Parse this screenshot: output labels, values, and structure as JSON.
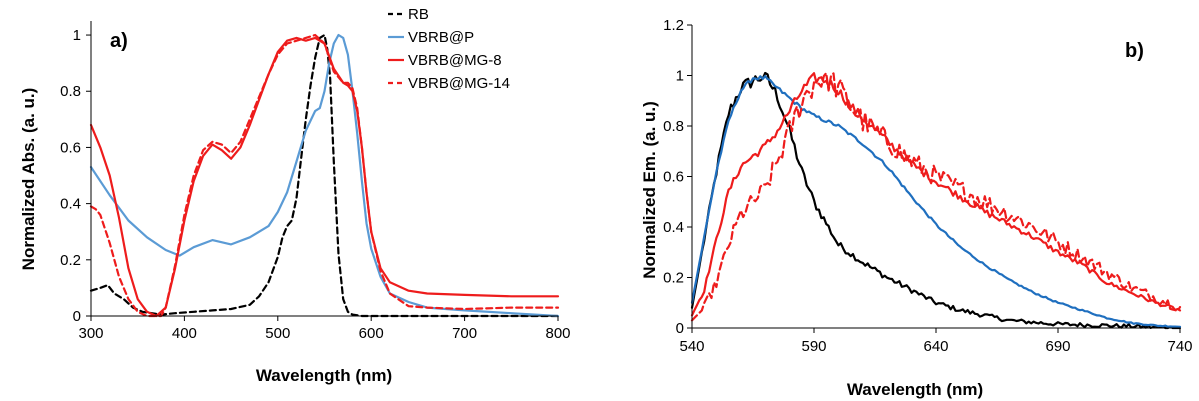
{
  "chart_data": [
    {
      "type": "line",
      "panel_label": "a)",
      "xlabel": "Wavelength (nm)",
      "ylabel": "Normalized Abs. (a. u.)",
      "xlim": [
        300,
        800
      ],
      "ylim": [
        0,
        1.05
      ],
      "xticks": [
        "300",
        "400",
        "500",
        "600",
        "700",
        "800"
      ],
      "yticks": [
        "0",
        "0.2",
        "0.4",
        "0.6",
        "0.8",
        "1"
      ],
      "grid": false,
      "legend_position": "top-right",
      "series": [
        {
          "name": "RB",
          "color": "#000000",
          "dash": true,
          "x": [
            300,
            310,
            318,
            325,
            335,
            345,
            355,
            365,
            375,
            390,
            410,
            430,
            450,
            470,
            480,
            490,
            500,
            505,
            510,
            515,
            520,
            525,
            530,
            535,
            540,
            545,
            550,
            553,
            556,
            560,
            565,
            570,
            575,
            580,
            590,
            600,
            650,
            700,
            800
          ],
          "y": [
            0.09,
            0.1,
            0.11,
            0.08,
            0.06,
            0.03,
            0.015,
            0.01,
            0.005,
            0.01,
            0.015,
            0.02,
            0.025,
            0.04,
            0.07,
            0.12,
            0.21,
            0.28,
            0.32,
            0.34,
            0.42,
            0.56,
            0.7,
            0.82,
            0.92,
            0.99,
            1.0,
            0.95,
            0.85,
            0.55,
            0.22,
            0.06,
            0.015,
            0.005,
            0.0,
            0.0,
            0.0,
            0.0,
            0.0
          ]
        },
        {
          "name": "VBRB@P",
          "color": "#5b9bd5",
          "dash": false,
          "x": [
            300,
            320,
            340,
            360,
            380,
            395,
            410,
            430,
            450,
            470,
            490,
            500,
            510,
            520,
            530,
            540,
            545,
            550,
            555,
            560,
            565,
            570,
            575,
            580,
            585,
            590,
            595,
            600,
            610,
            620,
            640,
            660,
            700,
            750,
            800
          ],
          "y": [
            0.53,
            0.43,
            0.34,
            0.28,
            0.235,
            0.215,
            0.245,
            0.27,
            0.255,
            0.28,
            0.32,
            0.37,
            0.44,
            0.55,
            0.66,
            0.73,
            0.74,
            0.8,
            0.9,
            0.97,
            1.0,
            0.99,
            0.93,
            0.8,
            0.65,
            0.48,
            0.33,
            0.24,
            0.14,
            0.08,
            0.05,
            0.03,
            0.02,
            0.01,
            0.0
          ]
        },
        {
          "name": "VBRB@MG-8",
          "color": "#ee1c1c",
          "dash": false,
          "x": [
            300,
            310,
            320,
            330,
            340,
            350,
            360,
            370,
            380,
            390,
            400,
            410,
            420,
            430,
            440,
            450,
            460,
            470,
            480,
            490,
            500,
            510,
            520,
            530,
            540,
            550,
            560,
            570,
            575,
            580,
            585,
            590,
            595,
            600,
            610,
            620,
            640,
            660,
            700,
            750,
            800
          ],
          "y": [
            0.68,
            0.6,
            0.5,
            0.35,
            0.17,
            0.06,
            0.015,
            0.0,
            0.03,
            0.17,
            0.34,
            0.48,
            0.57,
            0.61,
            0.59,
            0.56,
            0.6,
            0.68,
            0.77,
            0.86,
            0.94,
            0.98,
            0.99,
            0.98,
            0.99,
            0.97,
            0.88,
            0.83,
            0.82,
            0.8,
            0.73,
            0.6,
            0.44,
            0.3,
            0.17,
            0.12,
            0.09,
            0.08,
            0.075,
            0.07,
            0.07
          ]
        },
        {
          "name": "VBRB@MG-14",
          "color": "#ee1c1c",
          "dash": true,
          "x": [
            300,
            305,
            310,
            315,
            320,
            330,
            340,
            350,
            360,
            370,
            375,
            380,
            390,
            400,
            410,
            420,
            430,
            440,
            450,
            460,
            470,
            480,
            490,
            500,
            510,
            520,
            530,
            540,
            550,
            560,
            570,
            575,
            580,
            585,
            590,
            595,
            600,
            610,
            620,
            640,
            660,
            700,
            750,
            800
          ],
          "y": [
            0.39,
            0.38,
            0.36,
            0.31,
            0.26,
            0.14,
            0.06,
            0.015,
            0.0,
            0.0,
            0.0,
            0.03,
            0.18,
            0.36,
            0.5,
            0.59,
            0.62,
            0.61,
            0.58,
            0.62,
            0.7,
            0.78,
            0.86,
            0.93,
            0.97,
            0.98,
            0.99,
            1.0,
            0.97,
            0.87,
            0.83,
            0.83,
            0.81,
            0.74,
            0.6,
            0.44,
            0.3,
            0.16,
            0.08,
            0.035,
            0.03,
            0.025,
            0.03,
            0.03
          ]
        }
      ]
    },
    {
      "type": "line",
      "panel_label": "b)",
      "xlabel": "Wavelength (nm)",
      "ylabel": "Normalized Em. (a. u.)",
      "xlim": [
        540,
        740
      ],
      "ylim": [
        0,
        1.2
      ],
      "xticks": [
        "540",
        "590",
        "640",
        "690",
        "740"
      ],
      "yticks": [
        "0",
        "0.2",
        "0.4",
        "0.6",
        "0.8",
        "1",
        "1.2"
      ],
      "grid": false,
      "series": [
        {
          "color": "#000000",
          "dash": false,
          "noise": 0.02,
          "x": [
            540,
            545,
            550,
            555,
            560,
            565,
            570,
            575,
            580,
            585,
            590,
            600,
            610,
            620,
            630,
            640,
            650,
            660,
            670,
            690,
            710,
            740
          ],
          "y": [
            0.08,
            0.35,
            0.62,
            0.85,
            0.95,
            0.98,
            1.0,
            0.92,
            0.78,
            0.62,
            0.5,
            0.33,
            0.26,
            0.2,
            0.15,
            0.1,
            0.07,
            0.05,
            0.03,
            0.015,
            0.01,
            0.0
          ]
        },
        {
          "color": "#1f6fbf",
          "dash": false,
          "noise": 0.006,
          "x": [
            540,
            545,
            550,
            555,
            560,
            565,
            570,
            575,
            580,
            585,
            590,
            600,
            610,
            620,
            630,
            640,
            650,
            660,
            670,
            680,
            690,
            700,
            710,
            720,
            730,
            740
          ],
          "y": [
            0.1,
            0.36,
            0.62,
            0.82,
            0.94,
            0.99,
            0.99,
            0.95,
            0.91,
            0.87,
            0.84,
            0.8,
            0.73,
            0.64,
            0.52,
            0.41,
            0.32,
            0.25,
            0.19,
            0.14,
            0.1,
            0.07,
            0.04,
            0.02,
            0.01,
            0.005
          ]
        },
        {
          "color": "#ee1c1c",
          "dash": false,
          "noise": 0.015,
          "x": [
            540,
            545,
            550,
            555,
            560,
            565,
            570,
            575,
            580,
            585,
            590,
            595,
            600,
            605,
            610,
            620,
            630,
            640,
            650,
            660,
            670,
            680,
            690,
            700,
            710,
            720,
            730,
            740
          ],
          "y": [
            0.05,
            0.15,
            0.35,
            0.54,
            0.64,
            0.68,
            0.72,
            0.78,
            0.86,
            0.94,
            0.99,
            0.98,
            0.94,
            0.88,
            0.83,
            0.74,
            0.65,
            0.58,
            0.52,
            0.46,
            0.41,
            0.36,
            0.3,
            0.25,
            0.18,
            0.14,
            0.1,
            0.07
          ]
        },
        {
          "color": "#ee1c1c",
          "dash": true,
          "noise": 0.04,
          "x": [
            540,
            545,
            550,
            555,
            560,
            565,
            570,
            575,
            580,
            585,
            590,
            595,
            600,
            605,
            610,
            620,
            630,
            640,
            650,
            660,
            670,
            680,
            690,
            700,
            710,
            720,
            730,
            740
          ],
          "y": [
            0.03,
            0.08,
            0.18,
            0.33,
            0.45,
            0.5,
            0.55,
            0.66,
            0.78,
            0.9,
            0.97,
            1.0,
            0.95,
            0.88,
            0.82,
            0.74,
            0.66,
            0.6,
            0.55,
            0.5,
            0.45,
            0.4,
            0.34,
            0.28,
            0.22,
            0.16,
            0.12,
            0.08
          ]
        }
      ]
    }
  ]
}
